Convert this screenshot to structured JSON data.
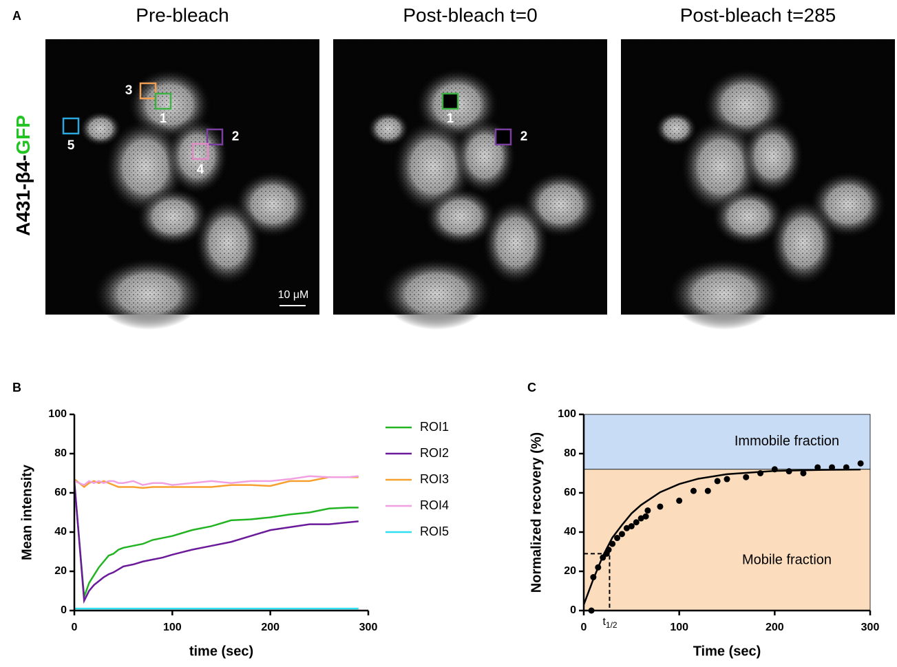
{
  "panels": {
    "a": "A",
    "b": "B",
    "c": "C"
  },
  "y_label_parts": [
    "A431-β4-",
    "GFP"
  ],
  "scale_bar": "10 μM",
  "images": [
    {
      "title": "Pre-bleach",
      "rois": [
        {
          "label": "3",
          "color": "#f0a050"
        },
        {
          "label": "1",
          "color": "#3cb043"
        },
        {
          "label": "2",
          "color": "#7b3fa0"
        },
        {
          "label": "4",
          "color": "#e38ac6"
        },
        {
          "label": "5",
          "color": "#2aa8e0"
        }
      ]
    },
    {
      "title": "Post-bleach t=0",
      "rois": [
        {
          "label": "1",
          "color": "#3cb043"
        },
        {
          "label": "2",
          "color": "#7b3fa0"
        }
      ]
    },
    {
      "title": "Post-bleach t=285",
      "rois": []
    }
  ],
  "chart_data": [
    {
      "type": "line",
      "xlabel": "time (sec)",
      "ylabel": "Mean intensity",
      "x": [
        0,
        10,
        15,
        20,
        25,
        30,
        35,
        40,
        45,
        50,
        60,
        70,
        80,
        90,
        100,
        120,
        140,
        160,
        180,
        200,
        220,
        240,
        260,
        280,
        290
      ],
      "series": [
        {
          "name": "ROI1",
          "color": "#22b422",
          "values": [
            65,
            7,
            14,
            18,
            22,
            25,
            28,
            29,
            31,
            32,
            33,
            34,
            36,
            37,
            38,
            41,
            43,
            46,
            46.5,
            47.5,
            49,
            50,
            52,
            52.5,
            52.5
          ]
        },
        {
          "name": "ROI2",
          "color": "#6a1a9a",
          "values": [
            66,
            5,
            10,
            13,
            15,
            17,
            18.5,
            19.5,
            21,
            22.5,
            23.5,
            25,
            26,
            27,
            28.5,
            31,
            33,
            35,
            38,
            41,
            42.5,
            44,
            44,
            45,
            45.5
          ]
        },
        {
          "name": "ROI3",
          "color": "#f7a030",
          "values": [
            67,
            63,
            65,
            66,
            65,
            66,
            65,
            64,
            63,
            63,
            63,
            62.5,
            63,
            63,
            63,
            63,
            63,
            64,
            64,
            63.5,
            66,
            66,
            68,
            68,
            68
          ]
        },
        {
          "name": "ROI4",
          "color": "#f0a0e0",
          "values": [
            66,
            64,
            66,
            65,
            66,
            65,
            66,
            66,
            65,
            65,
            66,
            64,
            65,
            65,
            64,
            65,
            66,
            65,
            66,
            66,
            67,
            68.5,
            68,
            68,
            68.5
          ]
        },
        {
          "name": "ROI5",
          "color": "#30e0f0",
          "values": [
            1,
            1,
            1,
            1,
            1,
            1,
            1,
            1,
            1,
            1,
            1,
            1,
            1,
            1,
            1,
            1,
            1,
            1,
            1,
            1,
            1,
            1,
            1,
            1,
            1
          ]
        }
      ],
      "xlim": [
        0,
        300
      ],
      "ylim": [
        0,
        100
      ],
      "xticks": [
        0,
        100,
        200,
        300
      ],
      "yticks": [
        0,
        20,
        40,
        60,
        80,
        100
      ],
      "legend": "right"
    },
    {
      "type": "scatter",
      "xlabel": "Time (sec)",
      "ylabel": "Normalized recovery (%)",
      "x": [
        8,
        10,
        15,
        20,
        24,
        26,
        30,
        35,
        40,
        45,
        50,
        55,
        60,
        65,
        67,
        80,
        100,
        115,
        130,
        140,
        150,
        170,
        185,
        200,
        215,
        230,
        245,
        260,
        275,
        290
      ],
      "values": [
        0,
        17,
        22,
        27,
        29,
        31,
        34,
        37,
        39,
        42,
        43,
        45,
        47,
        48,
        51,
        53,
        56,
        61,
        61,
        66,
        67,
        68,
        70,
        72,
        71,
        70,
        73,
        73,
        73,
        75
      ],
      "color": "#000000",
      "fit": {
        "x": [
          0,
          10,
          20,
          30,
          40,
          50,
          60,
          80,
          100,
          120,
          150,
          200,
          250,
          290
        ],
        "values": [
          3,
          16,
          27.8,
          37.2,
          43.6,
          49.5,
          53.8,
          60.3,
          64.5,
          67.2,
          69.5,
          71.2,
          71.7,
          71.9
        ],
        "color": "#000000"
      },
      "regions": [
        {
          "label": "Immobile fraction",
          "range": [
            72,
            100
          ],
          "color": "#c9dcf5"
        },
        {
          "label": "Mobile fraction",
          "range": [
            0,
            72
          ],
          "color": "#fbdcbc"
        }
      ],
      "t_half": {
        "x": 27,
        "y": 29,
        "label": "t",
        "sub": "1/2"
      },
      "xlim": [
        0,
        300
      ],
      "ylim": [
        0,
        100
      ],
      "xticks": [
        0,
        100,
        200,
        300
      ],
      "yticks": [
        0,
        20,
        40,
        60,
        80,
        100
      ]
    }
  ]
}
